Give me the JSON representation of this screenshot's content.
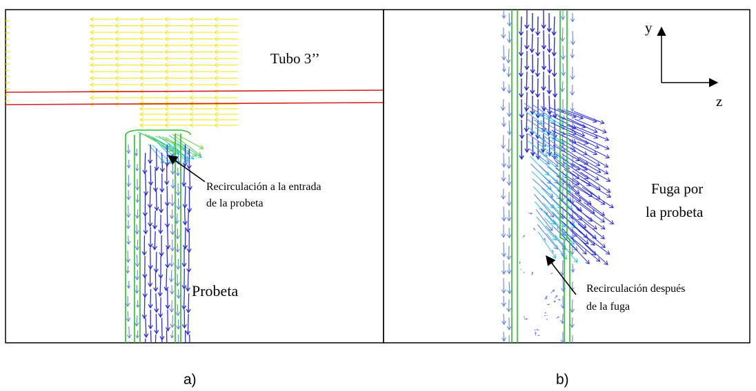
{
  "panel_a": {
    "pipe_label": "Tubo 3’’",
    "annotation": [
      "Recirculación a la entrada",
      "de la probeta"
    ],
    "specimen_label": "Probeta",
    "caption": "a)"
  },
  "panel_b": {
    "axis_y": "y",
    "axis_z": "z",
    "leak_label": [
      "Fuga por",
      "la probeta"
    ],
    "annotation": [
      "Recirculación después",
      "de la fuga"
    ],
    "caption": "b)"
  },
  "colors": {
    "pipe_arrows": "#f2e600",
    "pipe_wall": "#d42020",
    "specimen_wall": "#22c422",
    "vector_fast": "#2a2ae0",
    "vector_mid": "#5a78f0",
    "vector_slow": "#25c8d8",
    "vector_green": "#60d040",
    "frame": "#000000"
  }
}
